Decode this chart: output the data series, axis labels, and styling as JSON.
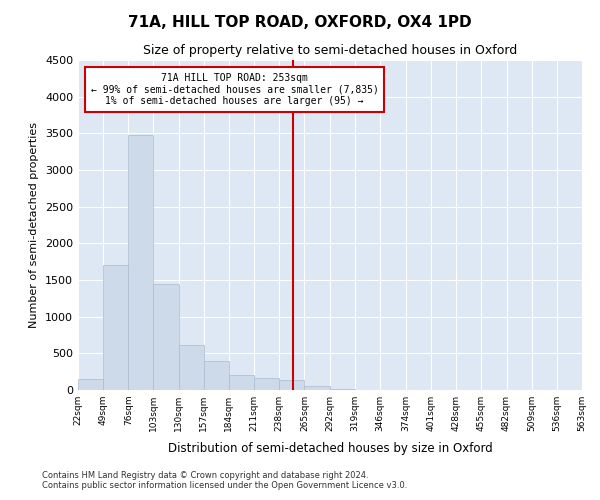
{
  "title": "71A, HILL TOP ROAD, OXFORD, OX4 1PD",
  "subtitle": "Size of property relative to semi-detached houses in Oxford",
  "xlabel": "Distribution of semi-detached houses by size in Oxford",
  "ylabel": "Number of semi-detached properties",
  "annotation_title": "71A HILL TOP ROAD: 253sqm",
  "annotation_line1": "← 99% of semi-detached houses are smaller (7,835)",
  "annotation_line2": "1% of semi-detached houses are larger (95) →",
  "property_size": 253,
  "bar_color": "#ccdaea",
  "bar_edge_color": "#aabcce",
  "vline_color": "#cc0000",
  "annotation_box_color": "#cc0000",
  "background_color": "#dde8f4",
  "grid_color": "#ffffff",
  "bins": [
    22,
    49,
    76,
    103,
    130,
    157,
    184,
    211,
    238,
    265,
    292,
    319,
    346,
    374,
    401,
    428,
    455,
    482,
    509,
    536,
    563
  ],
  "counts": [
    150,
    1700,
    3480,
    1450,
    620,
    390,
    200,
    170,
    130,
    60,
    20,
    0,
    0,
    0,
    0,
    0,
    0,
    0,
    0,
    0
  ],
  "ylim": [
    0,
    4500
  ],
  "yticks": [
    0,
    500,
    1000,
    1500,
    2000,
    2500,
    3000,
    3500,
    4000,
    4500
  ],
  "footer1": "Contains HM Land Registry data © Crown copyright and database right 2024.",
  "footer2": "Contains public sector information licensed under the Open Government Licence v3.0."
}
